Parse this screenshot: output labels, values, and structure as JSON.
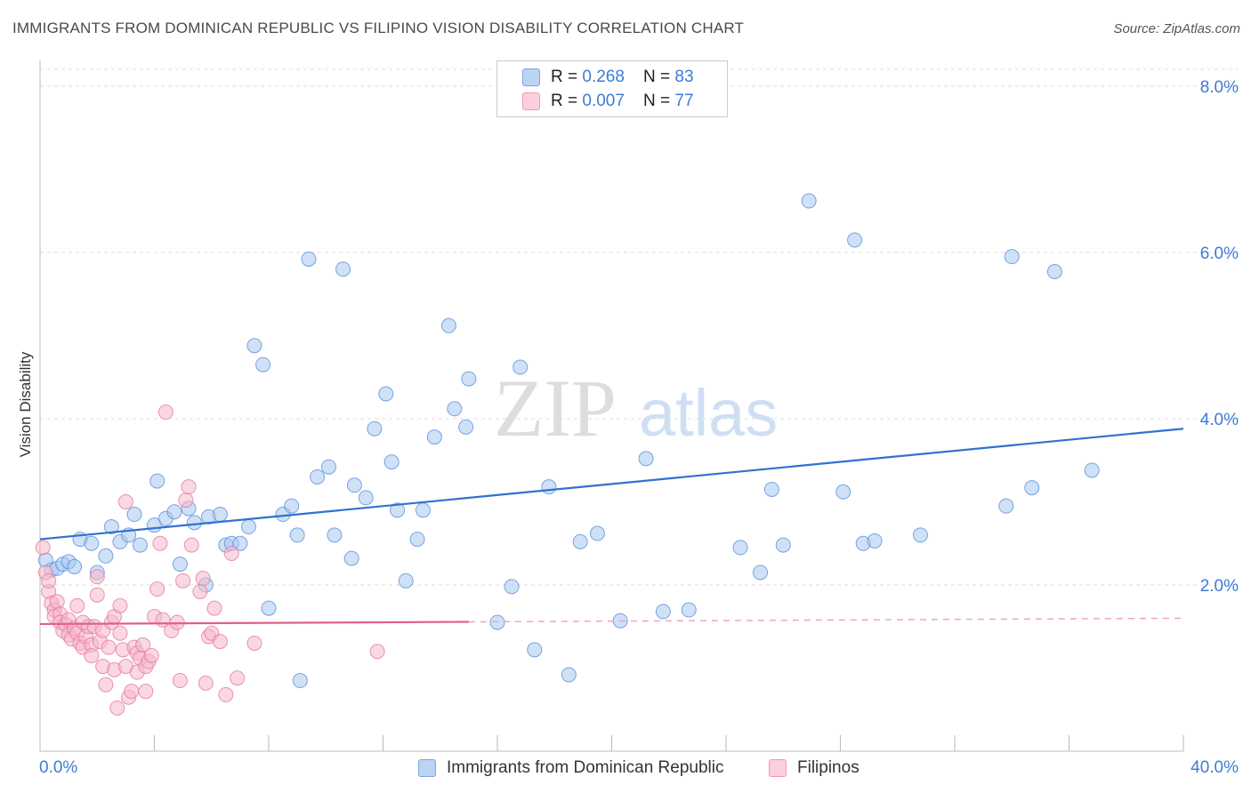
{
  "title": "IMMIGRANTS FROM DOMINICAN REPUBLIC VS FILIPINO VISION DISABILITY CORRELATION CHART",
  "source": "Source: ZipAtlas.com",
  "watermark": {
    "zip": "ZIP",
    "atlas": "atlas"
  },
  "legend_top": [
    {
      "r_label": "R = ",
      "r_value": "0.268",
      "n_label": "N = ",
      "n_value": "83",
      "color": "#a8c8f0"
    },
    {
      "r_label": "R = ",
      "r_value": "0.007",
      "n_label": "N = ",
      "n_value": "77",
      "color": "#f5b8ca"
    }
  ],
  "chart_data": {
    "type": "scatter",
    "title": "IMMIGRANTS FROM DOMINICAN REPUBLIC VS FILIPINO VISION DISABILITY CORRELATION CHART",
    "xlabel": "",
    "ylabel": "Vision Disability",
    "xlim": [
      0,
      40
    ],
    "ylim": [
      0,
      8
    ],
    "x_tick_labels": [
      "0.0%",
      "40.0%"
    ],
    "y_ticks": [
      2,
      4,
      6,
      8
    ],
    "y_tick_labels": [
      "2.0%",
      "4.0%",
      "6.0%",
      "8.0%"
    ],
    "grid": "horizontal dashed",
    "legend_position": "top-center and bottom",
    "series": [
      {
        "name": "Immigrants from Dominican Republic",
        "color": "#5b8fdb",
        "fill": "#a8c8f0",
        "r": 0.268,
        "n": 83,
        "trend": {
          "x": [
            0,
            40
          ],
          "y": [
            2.55,
            3.88
          ],
          "style": "solid"
        },
        "points": [
          [
            0.2,
            2.3
          ],
          [
            0.4,
            2.18
          ],
          [
            0.6,
            2.2
          ],
          [
            0.8,
            2.25
          ],
          [
            1.0,
            2.28
          ],
          [
            1.2,
            2.22
          ],
          [
            1.4,
            2.55
          ],
          [
            1.8,
            2.5
          ],
          [
            2.0,
            2.15
          ],
          [
            2.3,
            2.35
          ],
          [
            2.5,
            2.7
          ],
          [
            2.8,
            2.52
          ],
          [
            3.1,
            2.6
          ],
          [
            3.3,
            2.85
          ],
          [
            3.5,
            2.48
          ],
          [
            4.0,
            2.72
          ],
          [
            4.1,
            3.25
          ],
          [
            4.4,
            2.8
          ],
          [
            4.7,
            2.88
          ],
          [
            4.9,
            2.25
          ],
          [
            5.2,
            2.92
          ],
          [
            5.4,
            2.75
          ],
          [
            5.9,
            2.82
          ],
          [
            6.3,
            2.85
          ],
          [
            5.8,
            2.0
          ],
          [
            6.5,
            2.48
          ],
          [
            6.7,
            2.5
          ],
          [
            7.0,
            2.5
          ],
          [
            7.3,
            2.7
          ],
          [
            7.5,
            4.88
          ],
          [
            7.8,
            4.65
          ],
          [
            8.0,
            1.72
          ],
          [
            8.5,
            2.85
          ],
          [
            8.8,
            2.95
          ],
          [
            9.0,
            2.6
          ],
          [
            9.4,
            5.92
          ],
          [
            9.7,
            3.3
          ],
          [
            10.1,
            3.42
          ],
          [
            10.3,
            2.6
          ],
          [
            10.6,
            5.8
          ],
          [
            10.9,
            2.32
          ],
          [
            11.0,
            3.2
          ],
          [
            11.4,
            3.05
          ],
          [
            11.7,
            3.88
          ],
          [
            12.1,
            4.3
          ],
          [
            12.3,
            3.48
          ],
          [
            12.5,
            2.9
          ],
          [
            12.8,
            2.05
          ],
          [
            13.2,
            2.55
          ],
          [
            13.4,
            2.9
          ],
          [
            13.8,
            3.78
          ],
          [
            14.3,
            5.12
          ],
          [
            14.5,
            4.12
          ],
          [
            14.9,
            3.9
          ],
          [
            15.0,
            4.48
          ],
          [
            16.0,
            1.55
          ],
          [
            16.5,
            1.98
          ],
          [
            16.8,
            4.62
          ],
          [
            17.3,
            1.22
          ],
          [
            17.8,
            3.18
          ],
          [
            18.5,
            0.92
          ],
          [
            18.9,
            2.52
          ],
          [
            19.5,
            2.62
          ],
          [
            20.3,
            1.57
          ],
          [
            21.2,
            3.52
          ],
          [
            21.8,
            1.68
          ],
          [
            22.7,
            1.7
          ],
          [
            24.5,
            2.45
          ],
          [
            25.2,
            2.15
          ],
          [
            25.6,
            3.15
          ],
          [
            26.0,
            2.48
          ],
          [
            26.9,
            6.62
          ],
          [
            28.1,
            3.12
          ],
          [
            28.5,
            6.15
          ],
          [
            28.8,
            2.5
          ],
          [
            29.2,
            2.53
          ],
          [
            30.8,
            2.6
          ],
          [
            33.8,
            2.95
          ],
          [
            34.0,
            5.95
          ],
          [
            34.7,
            3.17
          ],
          [
            35.5,
            5.77
          ],
          [
            36.8,
            3.38
          ],
          [
            9.1,
            0.85
          ]
        ]
      },
      {
        "name": "Filipinos",
        "color": "#e37a9c",
        "fill": "#f5b8ca",
        "r": 0.007,
        "n": 77,
        "trend": {
          "x": [
            0,
            40
          ],
          "y": [
            1.53,
            1.6
          ],
          "solid_until_x": 15,
          "style": "solid-then-dashed"
        },
        "points": [
          [
            0.1,
            2.45
          ],
          [
            0.2,
            2.15
          ],
          [
            0.3,
            1.92
          ],
          [
            0.3,
            2.05
          ],
          [
            0.4,
            1.78
          ],
          [
            0.5,
            1.7
          ],
          [
            0.5,
            1.62
          ],
          [
            0.6,
            1.8
          ],
          [
            0.7,
            1.65
          ],
          [
            0.7,
            1.55
          ],
          [
            0.8,
            1.45
          ],
          [
            0.9,
            1.52
          ],
          [
            1.0,
            1.4
          ],
          [
            1.0,
            1.58
          ],
          [
            1.1,
            1.35
          ],
          [
            1.2,
            1.48
          ],
          [
            1.3,
            1.75
          ],
          [
            1.3,
            1.42
          ],
          [
            1.4,
            1.3
          ],
          [
            1.5,
            1.55
          ],
          [
            1.5,
            1.25
          ],
          [
            1.6,
            1.38
          ],
          [
            1.7,
            1.5
          ],
          [
            1.8,
            1.28
          ],
          [
            1.8,
            1.15
          ],
          [
            1.9,
            1.5
          ],
          [
            2.0,
            1.88
          ],
          [
            2.0,
            2.1
          ],
          [
            2.1,
            1.32
          ],
          [
            2.2,
            1.45
          ],
          [
            2.2,
            1.02
          ],
          [
            2.3,
            0.8
          ],
          [
            2.4,
            1.25
          ],
          [
            2.5,
            1.55
          ],
          [
            2.6,
            0.98
          ],
          [
            2.6,
            1.62
          ],
          [
            2.7,
            0.52
          ],
          [
            2.8,
            1.75
          ],
          [
            2.8,
            1.42
          ],
          [
            2.9,
            1.22
          ],
          [
            3.0,
            1.02
          ],
          [
            3.0,
            3.0
          ],
          [
            3.1,
            0.65
          ],
          [
            3.2,
            0.72
          ],
          [
            3.3,
            1.25
          ],
          [
            3.4,
            1.18
          ],
          [
            3.4,
            0.95
          ],
          [
            3.5,
            1.12
          ],
          [
            3.6,
            1.28
          ],
          [
            3.7,
            1.02
          ],
          [
            3.7,
            0.72
          ],
          [
            3.8,
            1.08
          ],
          [
            3.9,
            1.15
          ],
          [
            4.0,
            1.62
          ],
          [
            4.1,
            1.95
          ],
          [
            4.2,
            2.5
          ],
          [
            4.3,
            1.58
          ],
          [
            4.4,
            4.08
          ],
          [
            4.6,
            1.45
          ],
          [
            4.8,
            1.55
          ],
          [
            4.9,
            0.85
          ],
          [
            5.0,
            2.05
          ],
          [
            5.1,
            3.02
          ],
          [
            5.2,
            3.18
          ],
          [
            5.3,
            2.48
          ],
          [
            5.6,
            1.92
          ],
          [
            5.7,
            2.08
          ],
          [
            5.8,
            0.82
          ],
          [
            5.9,
            1.38
          ],
          [
            6.0,
            1.42
          ],
          [
            6.1,
            1.72
          ],
          [
            6.3,
            1.32
          ],
          [
            6.5,
            0.68
          ],
          [
            6.7,
            2.38
          ],
          [
            6.9,
            0.88
          ],
          [
            7.5,
            1.3
          ],
          [
            11.8,
            1.2
          ]
        ]
      }
    ]
  },
  "bottom_legend": [
    {
      "label": "Immigrants from Dominican Republic",
      "color": "#a8c8f0"
    },
    {
      "label": "Filipinos",
      "color": "#f5b8ca"
    }
  ]
}
